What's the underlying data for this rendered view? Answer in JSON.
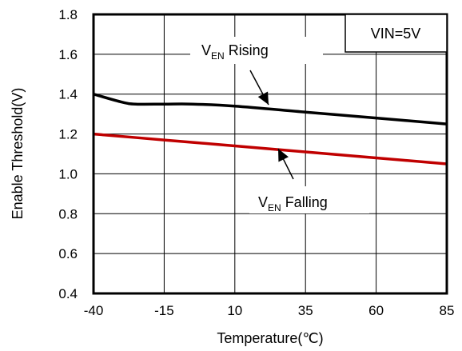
{
  "chart_data": {
    "type": "line",
    "title": "",
    "xlabel": "Temperature(℃)",
    "ylabel": "Enable Threshold(V)",
    "xlim": [
      -40,
      85
    ],
    "ylim": [
      0.4,
      1.8
    ],
    "x_ticks": [
      "-40",
      "-15",
      "10",
      "35",
      "60",
      "85"
    ],
    "y_ticks": [
      "0.4",
      "0.6",
      "0.8",
      "1.0",
      "1.2",
      "1.4",
      "1.6",
      "1.8"
    ],
    "grid": true,
    "condition_label": "VIN=5V",
    "series": [
      {
        "name": "VEN Rising",
        "label_main": "V",
        "label_sub": "EN",
        "label_rest": " Rising",
        "color": "#000000",
        "x": [
          -40,
          -30,
          -25,
          -15,
          -5,
          10,
          35,
          60,
          85
        ],
        "y": [
          1.4,
          1.36,
          1.35,
          1.35,
          1.35,
          1.34,
          1.31,
          1.28,
          1.25
        ]
      },
      {
        "name": "VEN Falling",
        "label_main": "V",
        "label_sub": "EN",
        "label_rest": " Falling",
        "color": "#c00000",
        "x": [
          -40,
          -15,
          10,
          35,
          60,
          85
        ],
        "y": [
          1.2,
          1.17,
          1.14,
          1.11,
          1.08,
          1.05
        ]
      }
    ]
  }
}
